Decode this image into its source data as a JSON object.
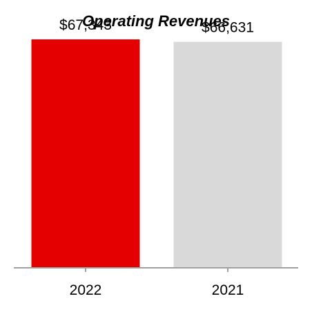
{
  "chart_data": {
    "type": "bar",
    "title": "Operating Revenues",
    "categories": [
      "2022",
      "2021"
    ],
    "values": [
      67343,
      66631
    ],
    "data_labels": [
      "$67,343",
      "$66,631"
    ],
    "colors": [
      "#e50000",
      "#d9d9d9"
    ],
    "ylim": [
      0,
      70000
    ],
    "grid": false,
    "xlabel": "",
    "ylabel": ""
  }
}
